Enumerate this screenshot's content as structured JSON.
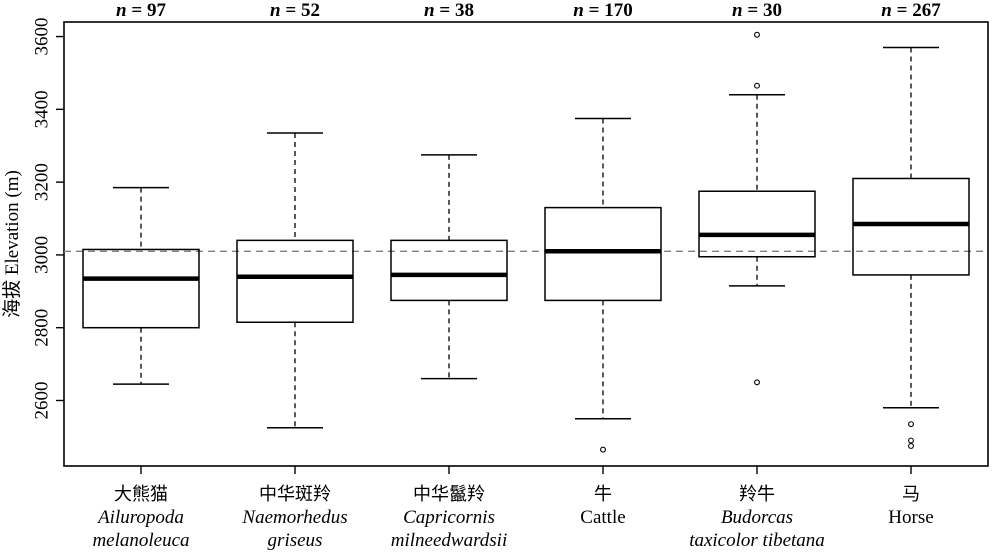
{
  "chart_data": {
    "type": "boxplot",
    "ylabel": "海拔 Elevation (m)",
    "ylim": [
      2420,
      3640
    ],
    "yticks": [
      2600,
      2800,
      3000,
      3200,
      3400,
      3600
    ],
    "reference_line": 3010,
    "grid": false,
    "categories": [
      {
        "cn": "大熊猫",
        "en": [
          "Ailuropoda",
          "melanoleuca"
        ],
        "en_italic": true,
        "n": "97"
      },
      {
        "cn": "中华斑羚",
        "en": [
          "Naemorhedus",
          "griseus"
        ],
        "en_italic": true,
        "n": "52"
      },
      {
        "cn": "中华鬣羚",
        "en": [
          "Capricornis",
          "milneedwardsii"
        ],
        "en_italic": true,
        "n": "38"
      },
      {
        "cn": "牛",
        "en": [
          "Cattle"
        ],
        "en_italic": false,
        "n": "170"
      },
      {
        "cn": "羚牛",
        "en": [
          "Budorcas",
          "taxicolor tibetana"
        ],
        "en_italic": true,
        "n": "30"
      },
      {
        "cn": "马",
        "en": [
          "Horse"
        ],
        "en_italic": false,
        "n": "267"
      }
    ],
    "series": [
      {
        "whisker_low": 2645,
        "q1": 2800,
        "median": 2935,
        "q3": 3015,
        "whisker_high": 3185,
        "outliers": []
      },
      {
        "whisker_low": 2525,
        "q1": 2815,
        "median": 2940,
        "q3": 3040,
        "whisker_high": 3335,
        "outliers": []
      },
      {
        "whisker_low": 2660,
        "q1": 2875,
        "median": 2945,
        "q3": 3040,
        "whisker_high": 3275,
        "outliers": []
      },
      {
        "whisker_low": 2550,
        "q1": 2875,
        "median": 3010,
        "q3": 3130,
        "whisker_high": 3375,
        "outliers": [
          2465
        ]
      },
      {
        "whisker_low": 2915,
        "q1": 2995,
        "median": 3055,
        "q3": 3175,
        "whisker_high": 3440,
        "outliers": [
          2650,
          3465,
          3605
        ]
      },
      {
        "whisker_low": 2580,
        "q1": 2945,
        "median": 3085,
        "q3": 3210,
        "whisker_high": 3570,
        "outliers": [
          2535,
          2490,
          2475
        ]
      }
    ]
  }
}
